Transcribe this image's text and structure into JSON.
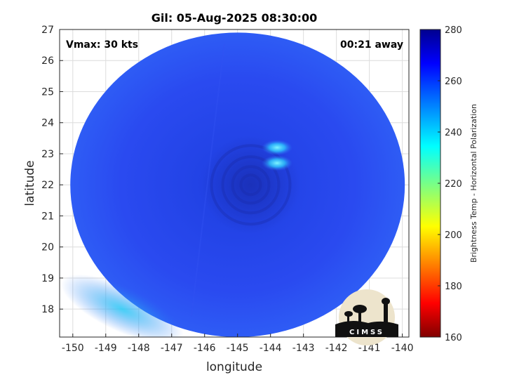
{
  "chart_data": {
    "type": "heatmap",
    "title": "Gil: 05-Aug-2025 08:30:00",
    "xlabel": "longitude",
    "ylabel": "latitude",
    "xlim": [
      -150.4,
      -139.8
    ],
    "ylim": [
      17.1,
      27.0
    ],
    "xticks": [
      -150,
      -149,
      -148,
      -147,
      -146,
      -145,
      -144,
      -143,
      -142,
      -141,
      -140
    ],
    "yticks": [
      18,
      19,
      20,
      21,
      22,
      23,
      24,
      25,
      26,
      27
    ],
    "grid": true,
    "annotations": {
      "left": "Vmax: 30 kts",
      "right": "00:21 away"
    },
    "colorbar": {
      "label": "Brightness Temp - Horizontal Polarization",
      "range": [
        160,
        280
      ],
      "ticks": [
        160,
        180,
        200,
        220,
        240,
        260,
        280
      ],
      "colormap": "jet"
    },
    "swath": {
      "center": [
        -145.0,
        22.0
      ],
      "radius_deg_lat": 4.9
    },
    "storm_center": [
      -144.6,
      22.0
    ],
    "features": [
      {
        "name": "cold convection",
        "lon": -143.8,
        "lat": 23.2,
        "value": 235
      },
      {
        "name": "cold convection",
        "lon": -143.8,
        "lat": 22.7,
        "value": 245
      },
      {
        "name": "warm edge",
        "lon": -148.5,
        "lat": 18.0,
        "value": 250
      }
    ],
    "background_value": 263
  },
  "logo": {
    "text": "CIMSS"
  },
  "colors": {
    "background": "#ffffff",
    "axis": "#262626",
    "grid": "#dcdcdc"
  }
}
